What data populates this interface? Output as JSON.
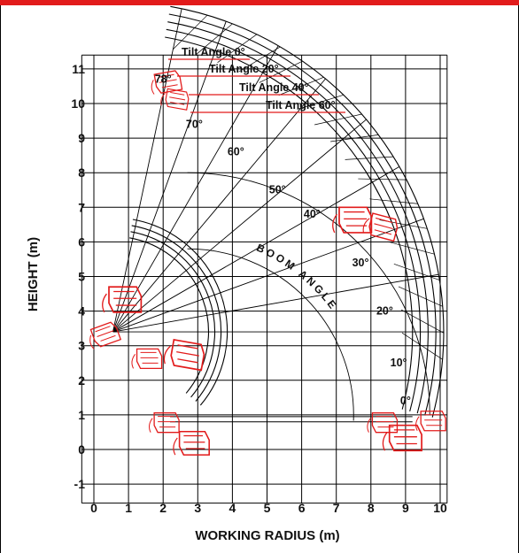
{
  "colors": {
    "accent_bar": "#e21b1b",
    "grid": "#000000",
    "curves": "#000000",
    "carriage": "#e21b1b"
  },
  "chart_data": {
    "type": "diagram",
    "xlabel": "WORKING RADIUS (m)",
    "ylabel": "HEIGHT (m)",
    "xlim": [
      0,
      10
    ],
    "ylim": [
      -1,
      11
    ],
    "x_ticks": [
      "0",
      "1",
      "2",
      "3",
      "4",
      "5",
      "6",
      "7",
      "8",
      "9",
      "10"
    ],
    "y_ticks": [
      "11",
      "10",
      "9",
      "8",
      "7",
      "6",
      "5",
      "4",
      "3",
      "2",
      "1",
      "0",
      "-1"
    ],
    "boom_angle_label": "BOOM ANGLE",
    "tilt_labels": [
      "Tilt Angle 0°",
      "Tilt Angle 20°",
      "Tilt Angle 40°",
      "Tilt Angle 60°"
    ],
    "boom_angles": [
      {
        "label": "78°",
        "x": 2.0,
        "y": 10.6
      },
      {
        "label": "70°",
        "x": 2.9,
        "y": 9.3
      },
      {
        "label": "60°",
        "x": 4.1,
        "y": 8.5
      },
      {
        "label": "50°",
        "x": 5.3,
        "y": 7.4
      },
      {
        "label": "40°",
        "x": 6.3,
        "y": 6.7
      },
      {
        "label": "30°",
        "x": 7.7,
        "y": 5.3
      },
      {
        "label": "20°",
        "x": 8.4,
        "y": 3.9
      },
      {
        "label": "10°",
        "x": 8.8,
        "y": 2.4
      },
      {
        "label": "0°",
        "x": 9.0,
        "y": 1.3
      }
    ],
    "pivot": {
      "x": 0.55,
      "y": 3.4
    },
    "inner_arc_radius_m": 3.3,
    "outer_arc_radius_m": 9.55
  }
}
